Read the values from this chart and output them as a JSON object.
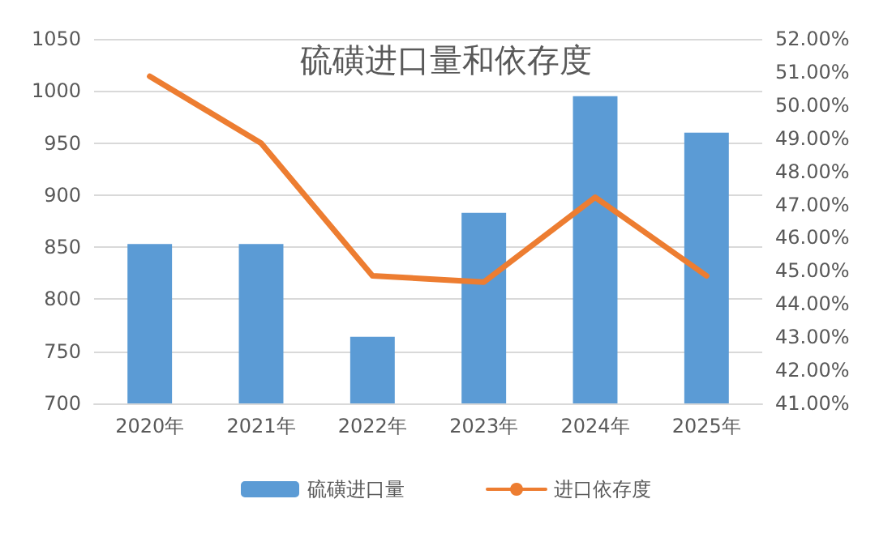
{
  "chart_data": {
    "type": "bar",
    "title": "硫磺进口量和依存度",
    "categories": [
      "2020年",
      "2021年",
      "2022年",
      "2023年",
      "2024年",
      "2025年"
    ],
    "series": [
      {
        "name": "硫磺进口量",
        "color": "#5b9bd5",
        "values": [
          853,
          853,
          764,
          883,
          995,
          960
        ]
      },
      {
        "name": "进口依存度",
        "type": "line",
        "axis": "y2",
        "color": "#ed7d31",
        "values": [
          50.87,
          48.85,
          44.85,
          44.66,
          47.22,
          44.85
        ]
      }
    ],
    "ylim": [
      700,
      1050
    ],
    "yticks": [
      700,
      750,
      800,
      850,
      900,
      950,
      1000,
      1050
    ],
    "y2lim": [
      41,
      52
    ],
    "y2ticks": [
      {
        "value": 41,
        "label": "41.00%"
      },
      {
        "value": 42,
        "label": "42.00%"
      },
      {
        "value": 43,
        "label": "43.00%"
      },
      {
        "value": 44,
        "label": "44.00%"
      },
      {
        "value": 45,
        "label": "45.00%"
      },
      {
        "value": 46,
        "label": "46.00%"
      },
      {
        "value": 47,
        "label": "47.00%"
      },
      {
        "value": 48,
        "label": "48.00%"
      },
      {
        "value": 49,
        "label": "49.00%"
      },
      {
        "value": 50,
        "label": "50.00%"
      },
      {
        "value": 51,
        "label": "51.00%"
      },
      {
        "value": 52,
        "label": "52.00%"
      }
    ],
    "grid": "y",
    "legend": "bottom",
    "marker": "none",
    "line_style": "solid"
  }
}
